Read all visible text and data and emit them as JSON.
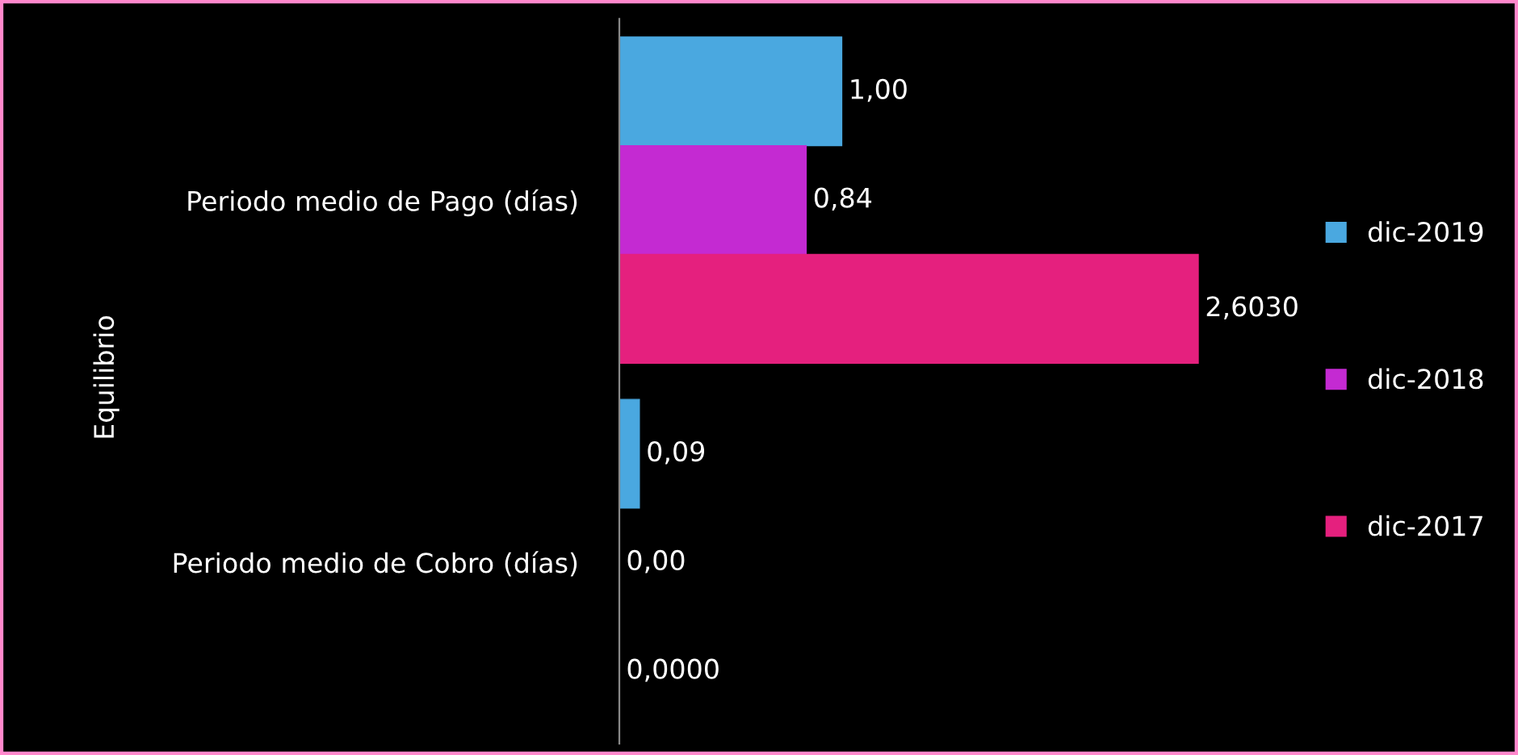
{
  "chart_data": {
    "type": "bar",
    "orientation": "horizontal",
    "ylabel": "Equilibrio",
    "categories": [
      "Periodo medio de Pago (días)",
      "Periodo medio de Cobro (días)"
    ],
    "series": [
      {
        "name": "dic-2019",
        "color": "#4aa8e0",
        "values": [
          1.0,
          0.09
        ],
        "value_labels": [
          "1,00",
          "0,09"
        ]
      },
      {
        "name": "dic-2018",
        "color": "#c42ad2",
        "values": [
          0.84,
          0.0
        ],
        "value_labels": [
          "0,84",
          "0,00"
        ]
      },
      {
        "name": "dic-2017",
        "color": "#e5207e",
        "values": [
          2.603,
          0.0
        ],
        "value_labels": [
          "2,6030",
          "0,0000"
        ]
      }
    ],
    "legend": "right",
    "grid": false
  }
}
